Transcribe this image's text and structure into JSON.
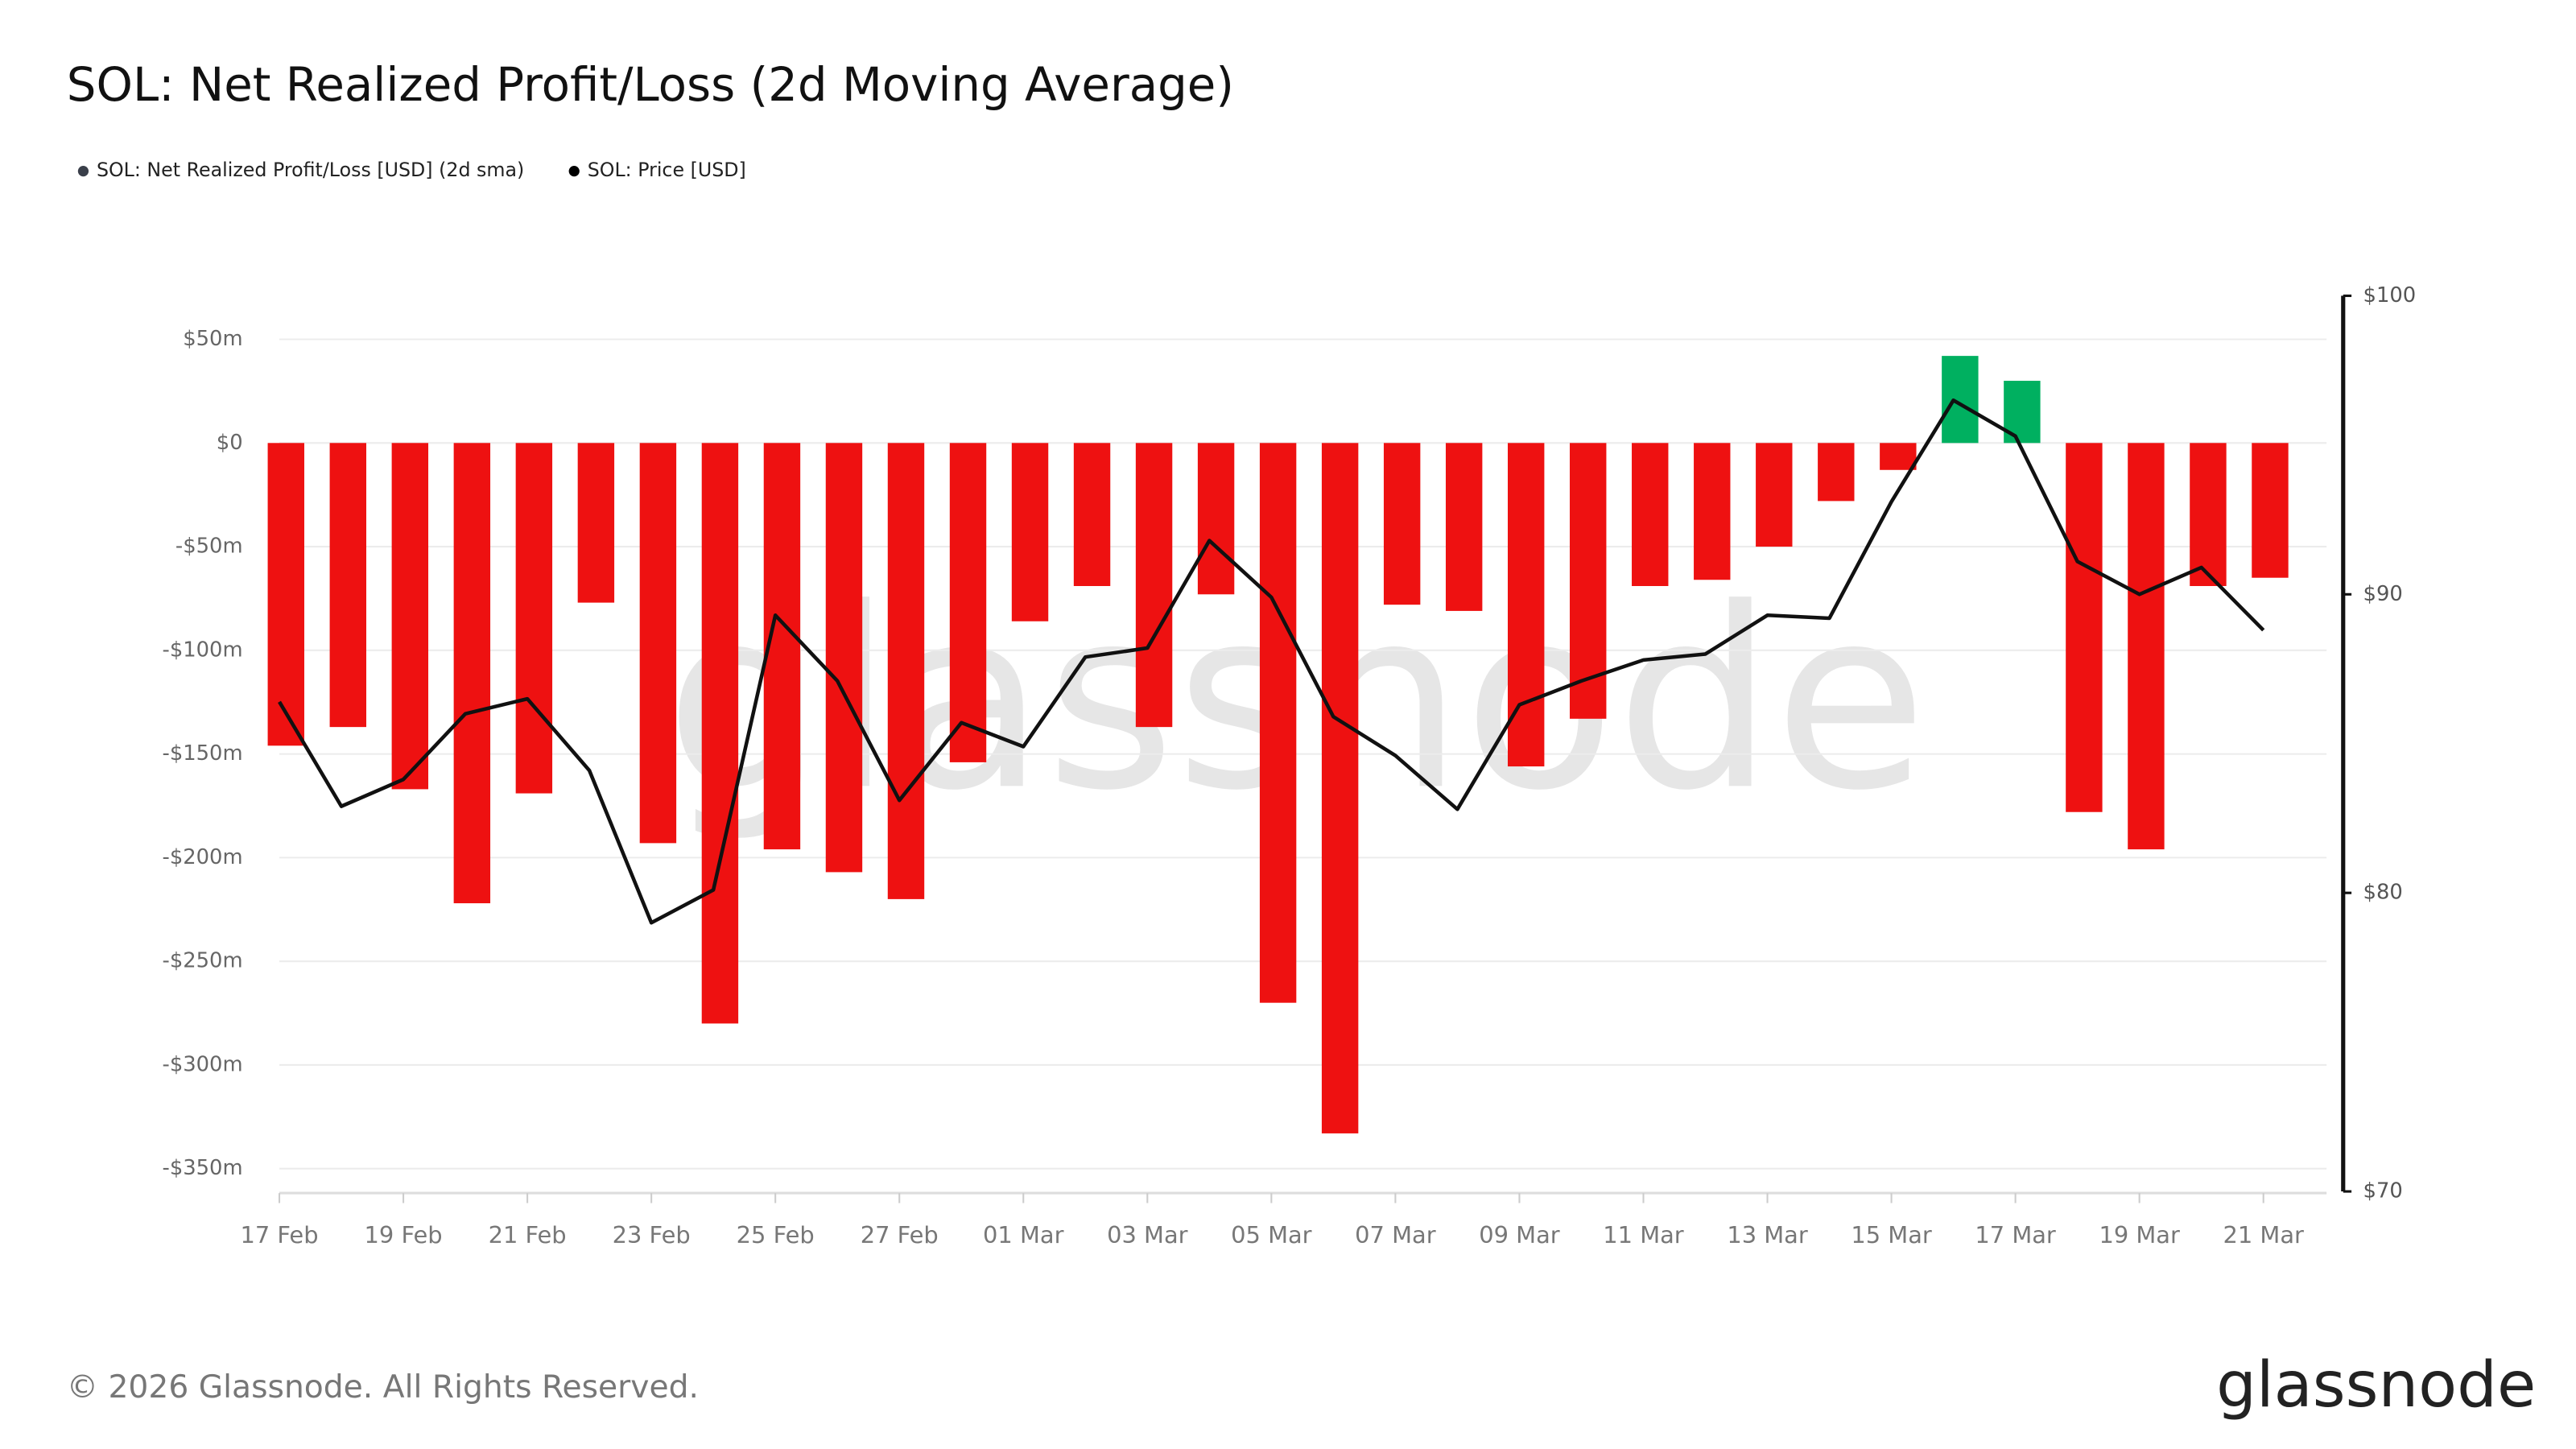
{
  "chart_data": {
    "type": "bar",
    "title": "SOL: Net Realized Profit/Loss (2d Moving Average)",
    "categories": [
      "17 Feb",
      null,
      "19 Feb",
      null,
      "21 Feb",
      null,
      "23 Feb",
      null,
      "25 Feb",
      null,
      "27 Feb",
      null,
      "01 Mar",
      null,
      "03 Mar",
      null,
      "05 Mar",
      null,
      "07 Mar",
      null,
      "09 Mar",
      null,
      "11 Mar",
      null,
      "13 Mar",
      null,
      "15 Mar",
      null,
      "17 Mar",
      null,
      "19 Mar",
      null,
      "21 Mar"
    ],
    "series": [
      {
        "name": "SOL: Net Realized Profit/Loss [USD] (2d sma)",
        "type": "bar",
        "color": "#ee1111",
        "positive_color": "#00b060",
        "values": [
          -146,
          -137,
          -167,
          -222,
          -169,
          -77,
          -193,
          -280,
          -196,
          -207,
          -220,
          -154,
          -86,
          -69,
          -137,
          -73,
          -270,
          -333,
          -78,
          -81,
          -156,
          -133,
          -69,
          -66,
          -50,
          -28,
          -13,
          42,
          30,
          -178,
          -196,
          -69,
          -65
        ]
      },
      {
        "name": "SOL: Price [USD]",
        "type": "line",
        "axis": "y2",
        "color": "#111111",
        "values": [
          86.4,
          82.9,
          83.8,
          86.0,
          86.5,
          84.1,
          79.0,
          80.1,
          89.3,
          87.1,
          83.1,
          85.7,
          84.9,
          87.9,
          88.2,
          91.8,
          89.9,
          85.9,
          84.6,
          82.8,
          86.3,
          87.1,
          87.8,
          88.0,
          89.3,
          89.2,
          93.1,
          96.5,
          95.3,
          91.1,
          90.0,
          90.9,
          88.8
        ]
      }
    ],
    "ylim": [
      -361,
      71
    ],
    "yticks": [
      {
        "value": 50,
        "label": "$50m"
      },
      {
        "value": 0,
        "label": "$0"
      },
      {
        "value": -50,
        "label": "-$50m"
      },
      {
        "value": -100,
        "label": "-$100m"
      },
      {
        "value": -150,
        "label": "-$150m"
      },
      {
        "value": -200,
        "label": "-$200m"
      },
      {
        "value": -250,
        "label": "-$250m"
      },
      {
        "value": -300,
        "label": "-$300m"
      },
      {
        "value": -350,
        "label": "-$350m"
      }
    ],
    "y2lim": [
      70,
      100
    ],
    "y2ticks": [
      {
        "value": 70,
        "label": "$70"
      },
      {
        "value": 80,
        "label": "$80"
      },
      {
        "value": 90,
        "label": "$90"
      },
      {
        "value": 100,
        "label": "$100"
      }
    ],
    "grid": true,
    "watermark": "glassnode",
    "footer": "© 2026 Glassnode. All Rights Reserved.",
    "logo": "glassnode"
  }
}
